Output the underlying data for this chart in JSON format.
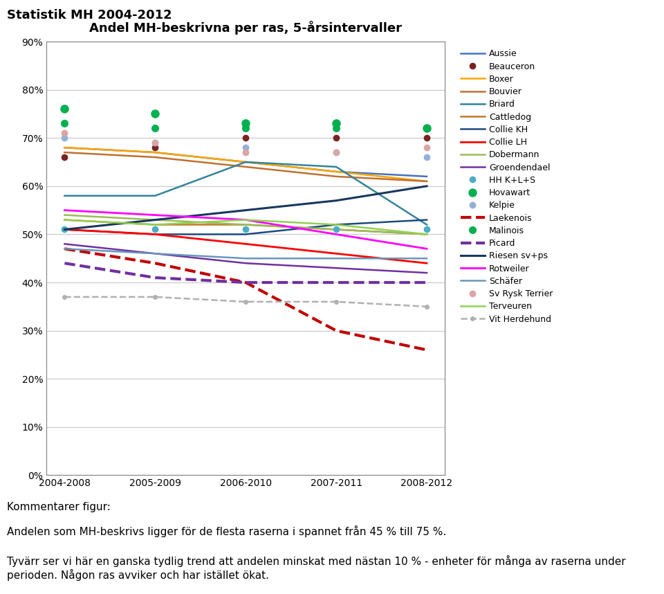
{
  "title": "Andel MH-beskrivna per ras, 5-årsintervaller",
  "suptitle": "Statistik MH 2004-2012",
  "xlabel_vals": [
    "2004-2008",
    "2005-2009",
    "2006-2010",
    "2007-2011",
    "2008-2012"
  ],
  "ylim": [
    0,
    90
  ],
  "yticks": [
    0,
    10,
    20,
    30,
    40,
    50,
    60,
    70,
    80,
    90
  ],
  "comment_line1": "Kommentarer figur:",
  "comment_line2": "Andelen som MH-beskrivs ligger för de flesta raserna i spannet från 45 % till 75 %.",
  "comment_line3": "Tyvärr ser vi här en ganska tydlig trend att andelen minskat med nästan 10 % - enheter för många av raserna under perioden. Någon ras avviker och har istället ökat.",
  "series": [
    {
      "name": "Aussie",
      "color": "#4472c4",
      "linestyle": "solid",
      "marker": null,
      "markersize": 0,
      "linewidth": 1.8,
      "values": [
        68,
        67,
        65,
        63,
        62
      ]
    },
    {
      "name": "Beauceron",
      "color": "#7b2222",
      "linestyle": "none",
      "marker": "o",
      "markersize": 7,
      "linewidth": 0,
      "values": [
        66,
        68,
        70,
        70,
        70
      ]
    },
    {
      "name": "Boxer",
      "color": "#ffa500",
      "linestyle": "solid",
      "marker": null,
      "markersize": 0,
      "linewidth": 1.8,
      "values": [
        68,
        67,
        65,
        63,
        61
      ]
    },
    {
      "name": "Bouvier",
      "color": "#c07030",
      "linestyle": "solid",
      "marker": null,
      "markersize": 0,
      "linewidth": 1.8,
      "values": [
        67,
        66,
        64,
        62,
        61
      ]
    },
    {
      "name": "Briard",
      "color": "#31849b",
      "linestyle": "solid",
      "marker": null,
      "markersize": 0,
      "linewidth": 1.8,
      "values": [
        58,
        58,
        65,
        64,
        52
      ]
    },
    {
      "name": "Cattledog",
      "color": "#c07828",
      "linestyle": "solid",
      "marker": null,
      "markersize": 0,
      "linewidth": 1.8,
      "values": [
        53,
        52,
        52,
        51,
        50
      ]
    },
    {
      "name": "Collie KH",
      "color": "#1f497d",
      "linestyle": "solid",
      "marker": null,
      "markersize": 0,
      "linewidth": 1.8,
      "values": [
        51,
        50,
        50,
        52,
        53
      ]
    },
    {
      "name": "Collie LH",
      "color": "#ff0000",
      "linestyle": "solid",
      "marker": null,
      "markersize": 0,
      "linewidth": 2.0,
      "values": [
        51,
        50,
        48,
        46,
        44
      ]
    },
    {
      "name": "Dobermann",
      "color": "#9bbb59",
      "linestyle": "solid",
      "marker": null,
      "markersize": 0,
      "linewidth": 1.8,
      "values": [
        54,
        53,
        52,
        51,
        50
      ]
    },
    {
      "name": "Groendendael",
      "color": "#7030a0",
      "linestyle": "solid",
      "marker": null,
      "markersize": 0,
      "linewidth": 1.8,
      "values": [
        48,
        46,
        44,
        43,
        42
      ]
    },
    {
      "name": "HH K+L+S",
      "color": "#4bacc6",
      "linestyle": "none",
      "marker": "o",
      "markersize": 7,
      "linewidth": 0,
      "values": [
        51,
        51,
        51,
        51,
        51
      ]
    },
    {
      "name": "Hovawart",
      "color": "#00b050",
      "linestyle": "none",
      "marker": "o",
      "markersize": 9,
      "linewidth": 0,
      "values": [
        76,
        75,
        73,
        73,
        72
      ]
    },
    {
      "name": "Kelpie",
      "color": "#92b0d8",
      "linestyle": "none",
      "marker": "o",
      "markersize": 7,
      "linewidth": 0,
      "values": [
        70,
        69,
        68,
        67,
        66
      ]
    },
    {
      "name": "Laekenois",
      "color": "#c00000",
      "linestyle": "dashed",
      "marker": null,
      "markersize": 0,
      "linewidth": 3.0,
      "values": [
        47,
        44,
        40,
        30,
        26
      ]
    },
    {
      "name": "Malinois",
      "color": "#00b050",
      "linestyle": "none",
      "marker": "o",
      "markersize": 8,
      "linewidth": 0,
      "values": [
        73,
        72,
        72,
        72,
        72
      ]
    },
    {
      "name": "Picard",
      "color": "#7030a0",
      "linestyle": "dashed",
      "marker": null,
      "markersize": 0,
      "linewidth": 3.0,
      "values": [
        44,
        41,
        40,
        40,
        40
      ]
    },
    {
      "name": "Riesen sv+ps",
      "color": "#17375e",
      "linestyle": "solid",
      "marker": null,
      "markersize": 0,
      "linewidth": 2.2,
      "values": [
        51,
        53,
        55,
        57,
        60
      ]
    },
    {
      "name": "Rotweiler",
      "color": "#ff00ff",
      "linestyle": "solid",
      "marker": null,
      "markersize": 0,
      "linewidth": 2.0,
      "values": [
        55,
        54,
        53,
        50,
        47
      ]
    },
    {
      "name": "Schäfer",
      "color": "#6897bb",
      "linestyle": "solid",
      "marker": null,
      "markersize": 0,
      "linewidth": 1.8,
      "values": [
        47,
        46,
        45,
        45,
        45
      ]
    },
    {
      "name": "Sv Rysk Terrier",
      "color": "#d9a5a5",
      "linestyle": "none",
      "marker": "o",
      "markersize": 7,
      "linewidth": 0,
      "values": [
        71,
        69,
        67,
        67,
        68
      ]
    },
    {
      "name": "Terveuren",
      "color": "#92d050",
      "linestyle": "solid",
      "marker": null,
      "markersize": 0,
      "linewidth": 1.8,
      "values": [
        53,
        52,
        53,
        52,
        50
      ]
    },
    {
      "name": "Vit Herdehund",
      "color": "#b0b0b0",
      "linestyle": "dashed",
      "marker": "o",
      "markersize": 5,
      "linewidth": 1.8,
      "values": [
        37,
        37,
        36,
        36,
        35
      ]
    }
  ]
}
